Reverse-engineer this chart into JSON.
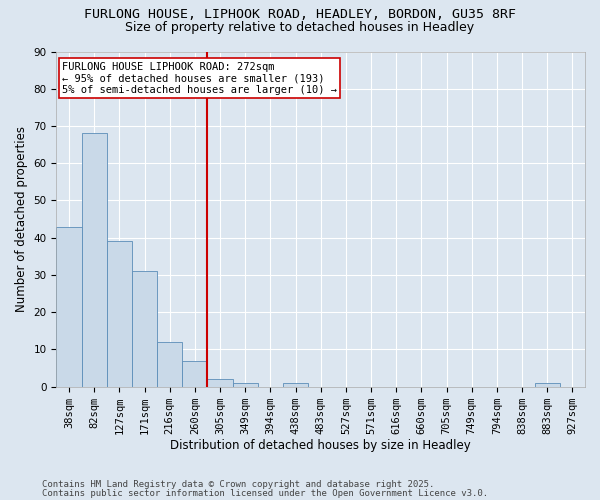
{
  "title1": "FURLONG HOUSE, LIPHOOK ROAD, HEADLEY, BORDON, GU35 8RF",
  "title2": "Size of property relative to detached houses in Headley",
  "xlabel": "Distribution of detached houses by size in Headley",
  "ylabel": "Number of detached properties",
  "footnote1": "Contains HM Land Registry data © Crown copyright and database right 2025.",
  "footnote2": "Contains public sector information licensed under the Open Government Licence v3.0.",
  "bin_labels": [
    "38sqm",
    "82sqm",
    "127sqm",
    "171sqm",
    "216sqm",
    "260sqm",
    "305sqm",
    "349sqm",
    "394sqm",
    "438sqm",
    "483sqm",
    "527sqm",
    "571sqm",
    "616sqm",
    "660sqm",
    "705sqm",
    "749sqm",
    "794sqm",
    "838sqm",
    "883sqm",
    "927sqm"
  ],
  "bar_values": [
    43,
    68,
    39,
    31,
    12,
    7,
    2,
    1,
    0,
    1,
    0,
    0,
    0,
    0,
    0,
    0,
    0,
    0,
    0,
    1,
    0
  ],
  "bar_color": "#c9d9e8",
  "bar_edge_color": "#5b8db8",
  "vline_x": 5.5,
  "vline_color": "#cc0000",
  "annotation_text": "FURLONG HOUSE LIPHOOK ROAD: 272sqm\n← 95% of detached houses are smaller (193)\n5% of semi-detached houses are larger (10) →",
  "annotation_box_color": "#ffffff",
  "annotation_box_edge": "#cc0000",
  "ylim": [
    0,
    90
  ],
  "yticks": [
    0,
    10,
    20,
    30,
    40,
    50,
    60,
    70,
    80,
    90
  ],
  "background_color": "#dce6f0",
  "plot_background": "#dce6f0",
  "grid_color": "#ffffff",
  "title_fontsize": 9.5,
  "subtitle_fontsize": 9,
  "axis_label_fontsize": 8.5,
  "tick_fontsize": 7.5,
  "annotation_fontsize": 7.5,
  "footnote_fontsize": 6.5
}
